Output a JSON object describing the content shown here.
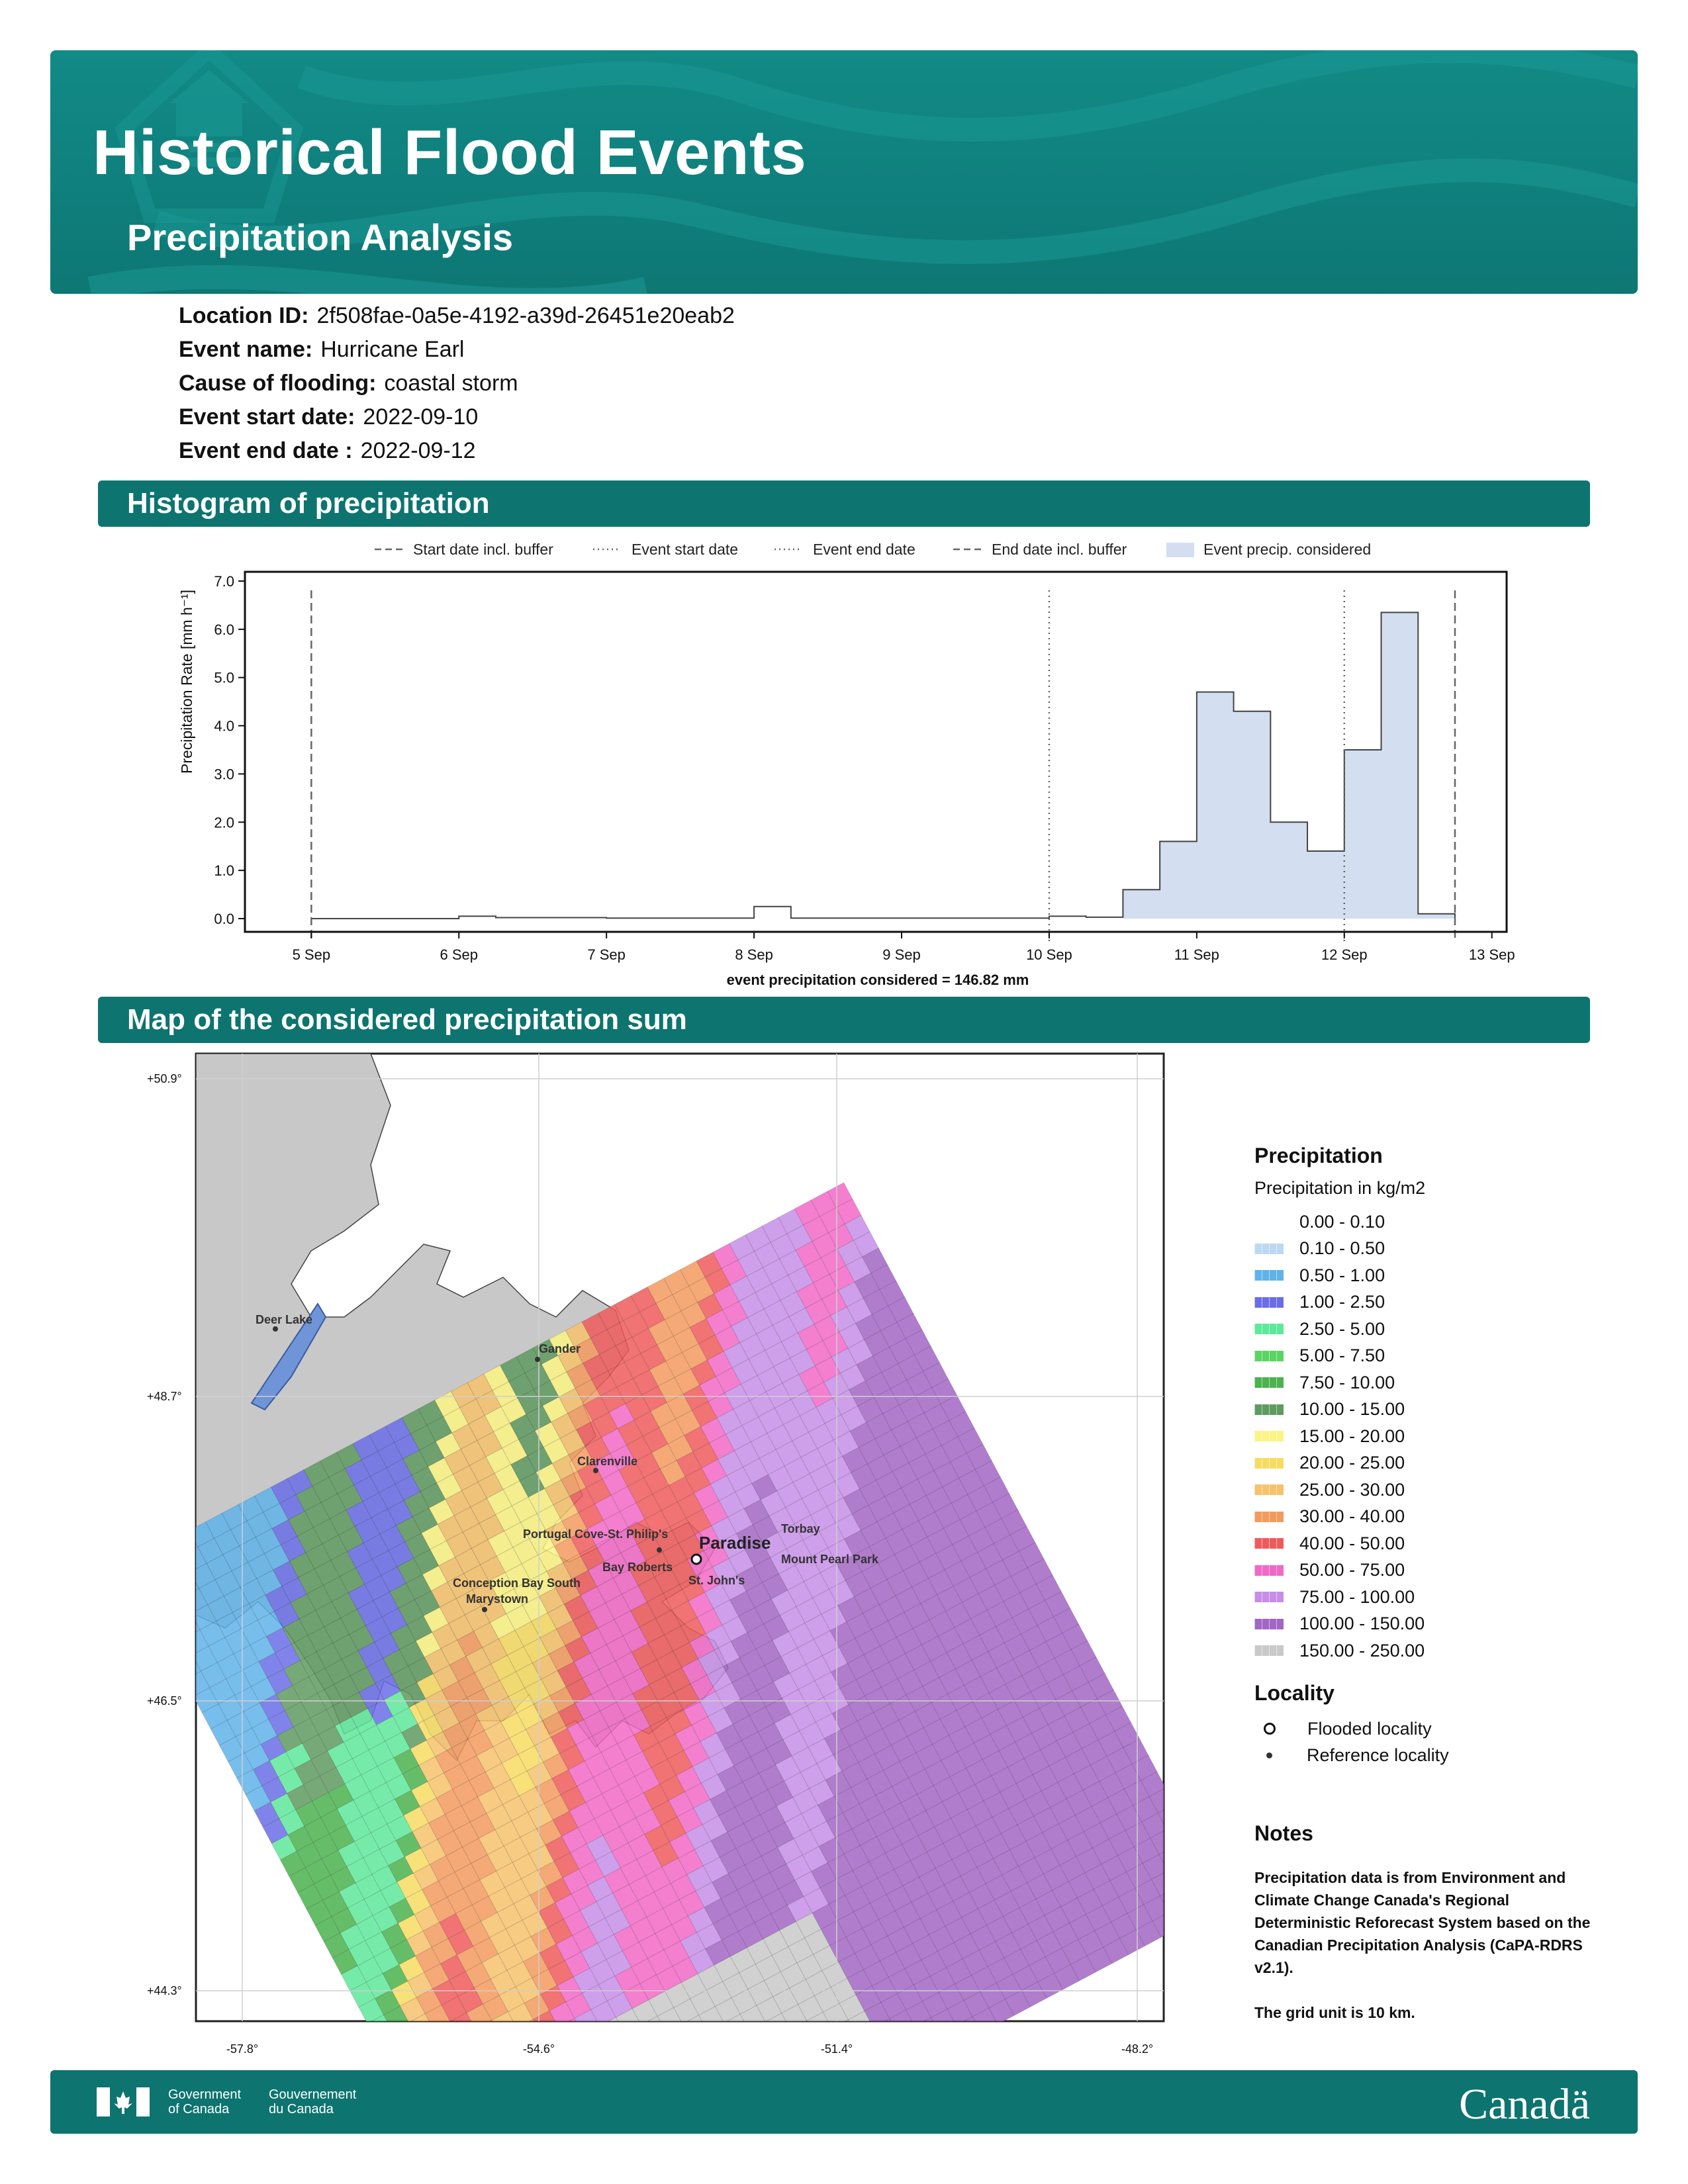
{
  "header": {
    "title": "Historical Flood Events",
    "subtitle": "Precipitation Analysis"
  },
  "event_info": [
    {
      "label": "Location ID:",
      "value": "2f508fae-0a5e-4192-a39d-26451e20eab2"
    },
    {
      "label": "Event name:",
      "value": "Hurricane Earl"
    },
    {
      "label": "Cause of flooding:",
      "value": "coastal storm"
    },
    {
      "label": "Event start date:",
      "value": "2022-09-10"
    },
    {
      "label": "Event end date :",
      "value": "2022-09-12"
    }
  ],
  "sections": {
    "histogram": "Histogram of precipitation",
    "map": "Map of the considered precipitation sum"
  },
  "chart_data": {
    "type": "area",
    "ylabel": "Precipitation Rate [mm h⁻¹]",
    "xlabel": "event precipitation considered = 146.82 mm",
    "ylim": [
      0,
      7
    ],
    "yticks": [
      "0.0",
      "1.0",
      "2.0",
      "3.0",
      "4.0",
      "5.0",
      "6.0",
      "7.0"
    ],
    "xticks": [
      "5 Sep",
      "6 Sep",
      "7 Sep",
      "8 Sep",
      "9 Sep",
      "10 Sep",
      "11 Sep",
      "12 Sep",
      "13 Sep"
    ],
    "xlim_days": [
      4.55,
      13.1
    ],
    "step_days": 0.25,
    "step_start": 5.0,
    "values": [
      0,
      0,
      0,
      0,
      0.05,
      0.02,
      0.02,
      0.02,
      0.01,
      0.01,
      0.01,
      0.01,
      0.25,
      0.01,
      0.01,
      0.01,
      0.01,
      0.01,
      0.01,
      0.01,
      0.05,
      0.03,
      0.6,
      1.6,
      4.7,
      4.3,
      2.0,
      1.4,
      3.5,
      6.35,
      0.1
    ],
    "considered_from_index": 22,
    "vlines": [
      {
        "day": 5.0,
        "style": "dashed",
        "label": "Start date incl. buffer"
      },
      {
        "day": 10.0,
        "style": "dotted",
        "label": "Event start date"
      },
      {
        "day": 12.0,
        "style": "dotted",
        "label": "Event end date"
      },
      {
        "day": 12.75,
        "style": "dashed",
        "label": "End date incl. buffer"
      }
    ],
    "fill_label": "Event precip. considered",
    "fill_color": "#d3def0",
    "grid": false,
    "legend_position": "top"
  },
  "map": {
    "lat_ticks": [
      "+50.9°",
      "+48.7°",
      "+46.5°",
      "+44.3°"
    ],
    "lon_ticks": [
      "-57.8°",
      "-54.6°",
      "-51.4°",
      "-48.2°"
    ],
    "localities": [
      {
        "name": "Deer Lake",
        "type": "reference"
      },
      {
        "name": "Gander",
        "type": "reference"
      },
      {
        "name": "Clarenville",
        "type": "reference"
      },
      {
        "name": "Torbay",
        "type": "reference"
      },
      {
        "name": "Portugal Cove-St. Philip's",
        "type": "reference"
      },
      {
        "name": "Paradise",
        "type": "flooded"
      },
      {
        "name": "Bay Roberts",
        "type": "reference"
      },
      {
        "name": "Mount Pearl Park",
        "type": "reference"
      },
      {
        "name": "St. John's",
        "type": "reference"
      },
      {
        "name": "Conception Bay South",
        "type": "reference"
      },
      {
        "name": "Marystown",
        "type": "reference"
      }
    ]
  },
  "legend": {
    "title": "Precipitation",
    "subtitle": "Precipitation in kg/m2",
    "classes": [
      {
        "label": "0.00 - 0.10",
        "color": "#ffffff"
      },
      {
        "label": "0.10 - 0.50",
        "color": "#bcd8f2"
      },
      {
        "label": "0.50 - 1.00",
        "color": "#5fb3ea"
      },
      {
        "label": "1.00 - 2.50",
        "color": "#6a6ee6"
      },
      {
        "label": "2.50 - 5.00",
        "color": "#5ee89a"
      },
      {
        "label": "5.00 - 7.50",
        "color": "#5ad462"
      },
      {
        "label": "7.50 - 10.00",
        "color": "#4bb24e"
      },
      {
        "label": "10.00 - 15.00",
        "color": "#5f9a60"
      },
      {
        "label": "15.00 - 20.00",
        "color": "#fbf485"
      },
      {
        "label": "20.00 - 25.00",
        "color": "#f7dc62"
      },
      {
        "label": "25.00 - 30.00",
        "color": "#f6c26c"
      },
      {
        "label": "30.00 - 40.00",
        "color": "#f39a5e"
      },
      {
        "label": "40.00 - 50.00",
        "color": "#ef5b5c"
      },
      {
        "label": "50.00 - 75.00",
        "color": "#f268c6"
      },
      {
        "label": "75.00 - 100.00",
        "color": "#c68ee6"
      },
      {
        "label": "100.00 - 150.00",
        "color": "#a266c4"
      },
      {
        "label": "150.00 - 250.00",
        "color": "#c9c9c9"
      }
    ],
    "locality_title": "Locality",
    "flooded_label": "Flooded locality",
    "reference_label": "Reference locality"
  },
  "notes": {
    "title": "Notes",
    "text1": "Precipitation data is from Environment and Climate Change Canada's Regional Deterministic Reforecast System based on the Canadian Precipitation Analysis (CaPA-RDRS v2.1).",
    "text2": "The grid unit is 10 km."
  },
  "footer": {
    "gov_en_1": "Government",
    "gov_en_2": "of Canada",
    "gov_fr_1": "Gouvernement",
    "gov_fr_2": "du Canada",
    "wordmark": "Canadä"
  }
}
